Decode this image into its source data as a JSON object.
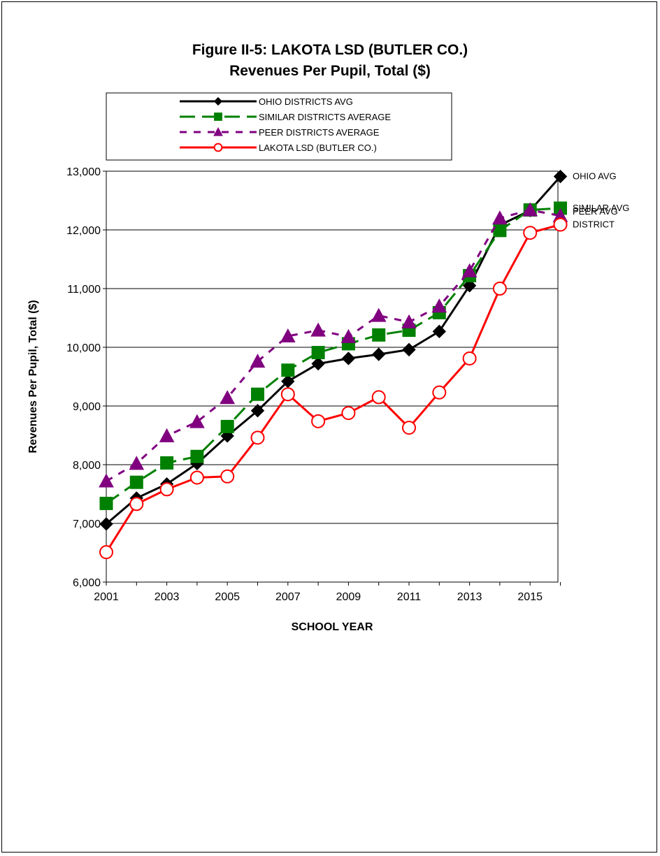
{
  "chart_data": {
    "type": "line",
    "title": "Figure II-5: LAKOTA LSD (BUTLER CO.)",
    "subtitle": "Revenues Per Pupil, Total ($)",
    "xlabel": "SCHOOL YEAR",
    "ylabel": "Revenues Per Pupil, Total ($)",
    "x": [
      2001,
      2002,
      2003,
      2004,
      2005,
      2006,
      2007,
      2008,
      2009,
      2010,
      2011,
      2012,
      2013,
      2014,
      2015,
      2016
    ],
    "x_tick_labels": [
      "2001",
      "2003",
      "2005",
      "2007",
      "2009",
      "2011",
      "2013",
      "2015"
    ],
    "ylim": [
      6000,
      13000
    ],
    "y_tick_labels": [
      "6,000",
      "7,000",
      "8,000",
      "9,000",
      "10,000",
      "11,000",
      "12,000",
      "13,000"
    ],
    "grid": true,
    "legend_position": "top",
    "series": [
      {
        "name": "OHIO DISTRICTS AVG",
        "end_label": "OHIO AVG",
        "color": "#000000",
        "marker": "diamond",
        "line": "solid",
        "values": [
          6990,
          7430,
          7670,
          8020,
          8490,
          8920,
          9420,
          9720,
          9810,
          9880,
          9960,
          10270,
          11050,
          12080,
          12330,
          12910
        ]
      },
      {
        "name": "SIMILAR DISTRICTS AVERAGE",
        "end_label": "SIMILAR AVG",
        "color": "#008000",
        "marker": "square",
        "line": "dashed",
        "values": [
          7340,
          7700,
          8030,
          8140,
          8650,
          9200,
          9610,
          9910,
          10060,
          10210,
          10290,
          10590,
          11220,
          11990,
          12340,
          12370
        ]
      },
      {
        "name": "PEER DISTRICTS AVERAGE",
        "end_label": "PEER AVG",
        "color": "#800080",
        "marker": "triangle",
        "line": "dotted",
        "values": [
          7720,
          8020,
          8490,
          8730,
          9140,
          9760,
          10190,
          10290,
          10180,
          10540,
          10430,
          10700,
          11300,
          12200,
          12340,
          12240
        ]
      },
      {
        "name": "LAKOTA LSD (BUTLER CO.)",
        "end_label": "DISTRICT",
        "color": "#ff0000",
        "marker": "circle",
        "line": "solid",
        "values": [
          6510,
          7330,
          7580,
          7780,
          7800,
          8460,
          9200,
          8740,
          8880,
          9150,
          8630,
          9230,
          9810,
          11000,
          11950,
          12090
        ]
      }
    ]
  }
}
